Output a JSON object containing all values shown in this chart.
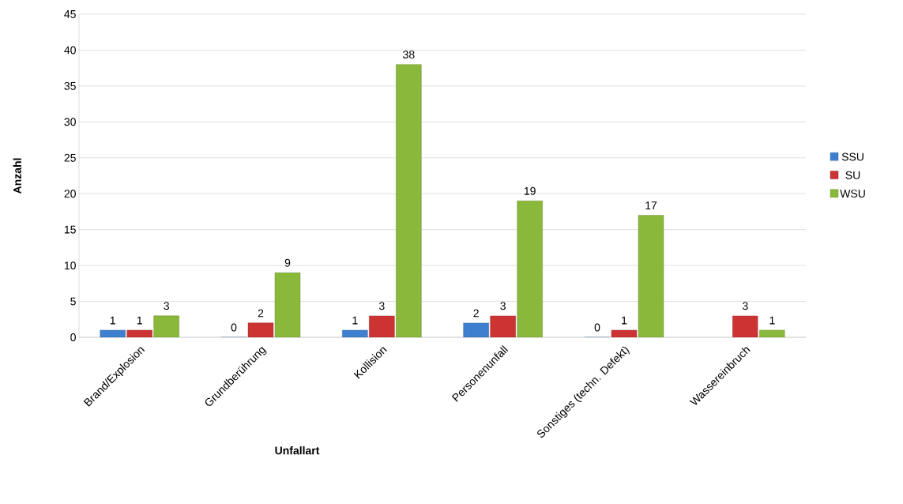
{
  "chart_data": {
    "type": "bar",
    "xlabel": "Unfallart",
    "ylabel": "Anzahl",
    "categories": [
      "Brand/Explosion",
      "Grundberührung",
      "Kollision",
      "Personenunfall",
      "Sonstiges (techn. Defekt)",
      "Wassereinbruch"
    ],
    "series": [
      {
        "name": "SSU",
        "color": "#3f7fcf",
        "values": [
          1,
          0,
          1,
          2,
          0,
          null
        ]
      },
      {
        "name": "SU",
        "color": "#cc3333",
        "values": [
          1,
          2,
          3,
          3,
          1,
          3
        ]
      },
      {
        "name": "WSU",
        "color": "#8ab83a",
        "values": [
          3,
          9,
          38,
          19,
          17,
          1
        ]
      }
    ],
    "ylim": [
      0,
      45
    ],
    "yticks": [
      0,
      5,
      10,
      15,
      20,
      25,
      30,
      35,
      40,
      45
    ],
    "grid": "y",
    "legend": "right",
    "data_labels": true
  }
}
